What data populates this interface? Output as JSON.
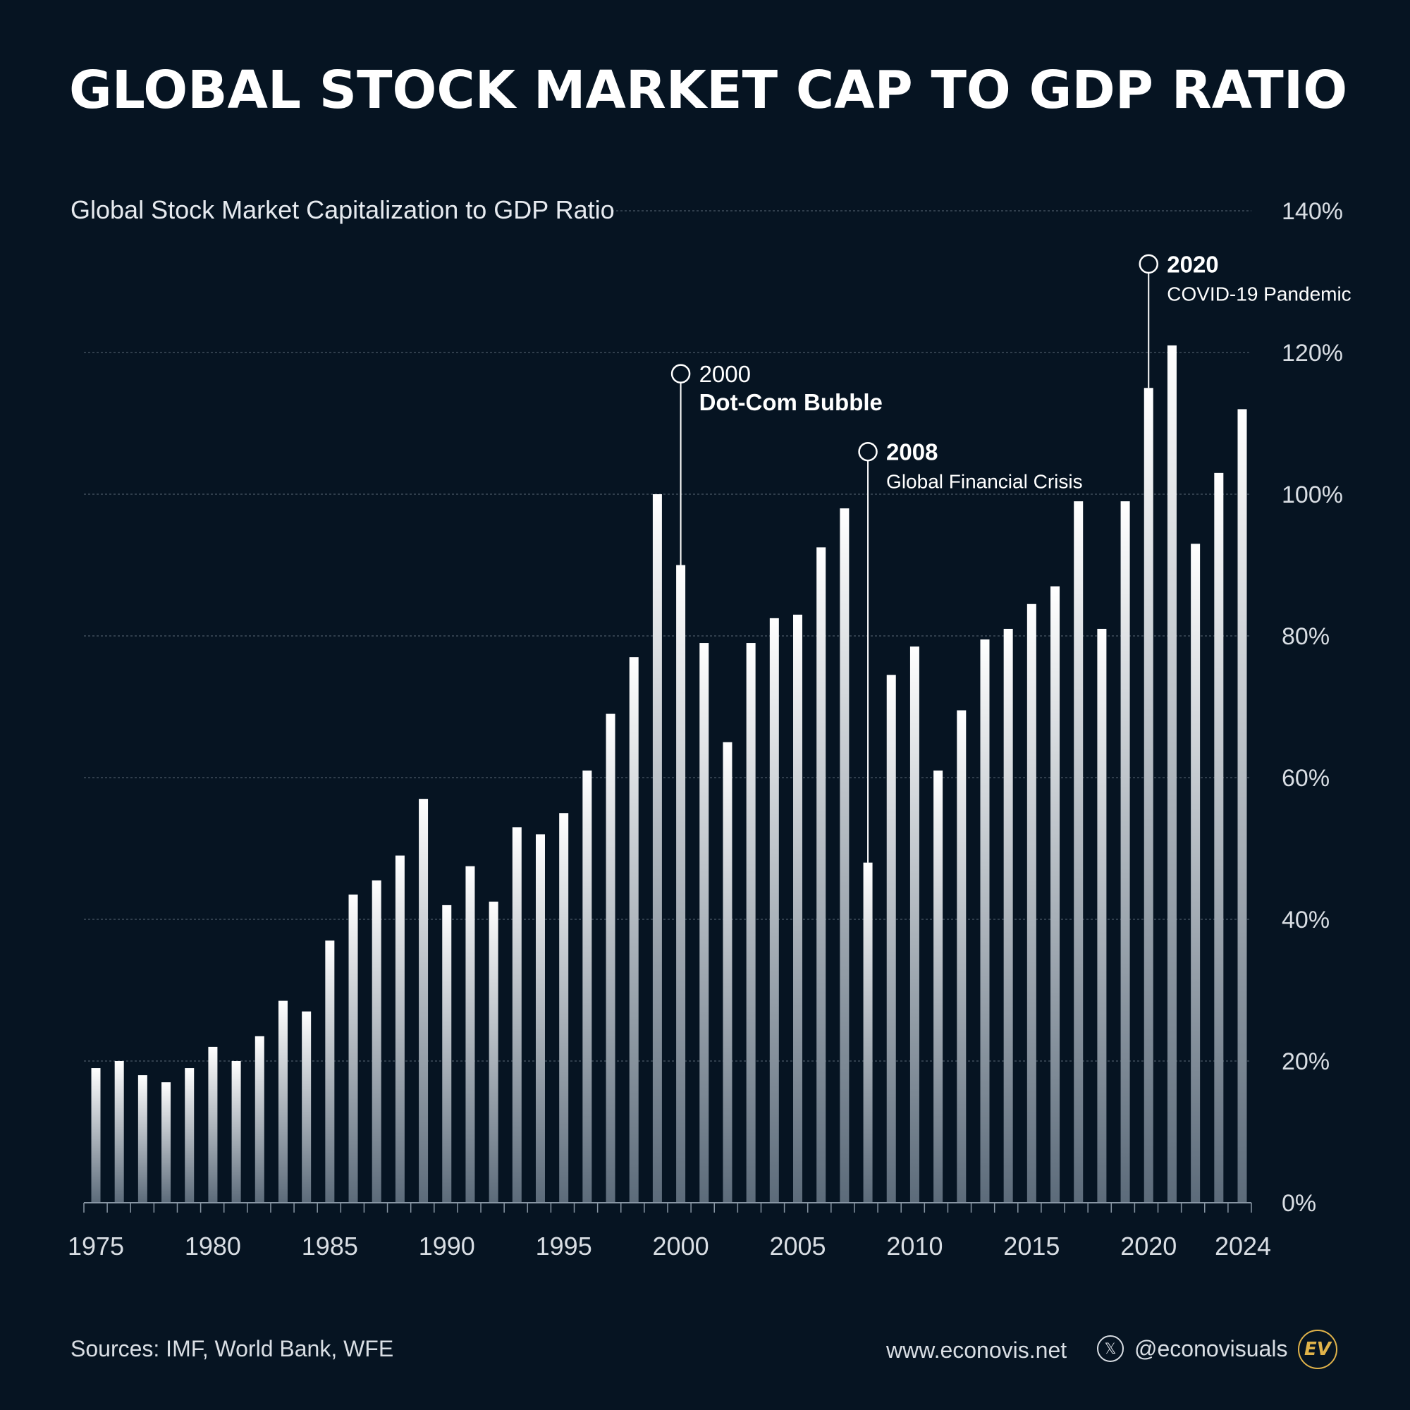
{
  "title": "GLOBAL STOCK MARKET CAP TO GDP RATIO",
  "footer": {
    "sources": "Sources: IMF, World Bank, WFE",
    "website": "www.econovis.net",
    "handle": "@econovisuals",
    "x_icon_glyph": "𝕏",
    "logo_text": "EV"
  },
  "colors": {
    "background": "#061422",
    "bar_top": "#ffffff",
    "bar_bottom": "#5c6b7a",
    "grid": "#4a5866",
    "text": "#ffffff",
    "muted_text": "#d9dee4",
    "logo": "#e0b34a"
  },
  "chart_data": {
    "type": "bar",
    "title": "Global Stock Market Capitalization to GDP Ratio",
    "xlabel": "",
    "ylabel": "",
    "ylim": [
      0,
      140
    ],
    "yticks": [
      0,
      20,
      40,
      60,
      80,
      100,
      120,
      140
    ],
    "ytick_labels": [
      "0%",
      "20%",
      "40%",
      "60%",
      "80%",
      "100%",
      "120%",
      "140%"
    ],
    "xtick_labels": [
      "1975",
      "1980",
      "1985",
      "1990",
      "1995",
      "2000",
      "2005",
      "2010",
      "2015",
      "2020",
      "2024"
    ],
    "xtick_years": [
      1975,
      1980,
      1985,
      1990,
      1995,
      2000,
      2005,
      2010,
      2015,
      2020,
      2024
    ],
    "grid": true,
    "y_axis_position": "right",
    "categories": [
      1975,
      1976,
      1977,
      1978,
      1979,
      1980,
      1981,
      1982,
      1983,
      1984,
      1985,
      1986,
      1987,
      1988,
      1989,
      1990,
      1991,
      1992,
      1993,
      1994,
      1995,
      1996,
      1997,
      1998,
      1999,
      2000,
      2001,
      2002,
      2003,
      2004,
      2005,
      2006,
      2007,
      2008,
      2009,
      2010,
      2011,
      2012,
      2013,
      2014,
      2015,
      2016,
      2017,
      2018,
      2019,
      2020,
      2021,
      2022,
      2023,
      2024
    ],
    "values": [
      19,
      20,
      18,
      17,
      19,
      22,
      20,
      23.5,
      28.5,
      27,
      37,
      43.5,
      45.5,
      49,
      57,
      42,
      47.5,
      42.5,
      53,
      52,
      55,
      61,
      69,
      77,
      100,
      90,
      79,
      65,
      79,
      82.5,
      83,
      92.5,
      98,
      48,
      74.5,
      78.5,
      61,
      69.5,
      79.5,
      81,
      84.5,
      87,
      99,
      81,
      99,
      115,
      121,
      93,
      103,
      112
    ],
    "annotations": [
      {
        "year": 2000,
        "label_year": "2000",
        "label_text": "Dot-Com Bubble",
        "marker_value": 117
      },
      {
        "year": 2008,
        "label_year": "2008",
        "label_text": "Global Financial Crisis",
        "marker_value": 106
      },
      {
        "year": 2020,
        "label_year": "2020",
        "label_text": "COVID-19 Pandemic",
        "marker_value": 132.5
      }
    ]
  }
}
